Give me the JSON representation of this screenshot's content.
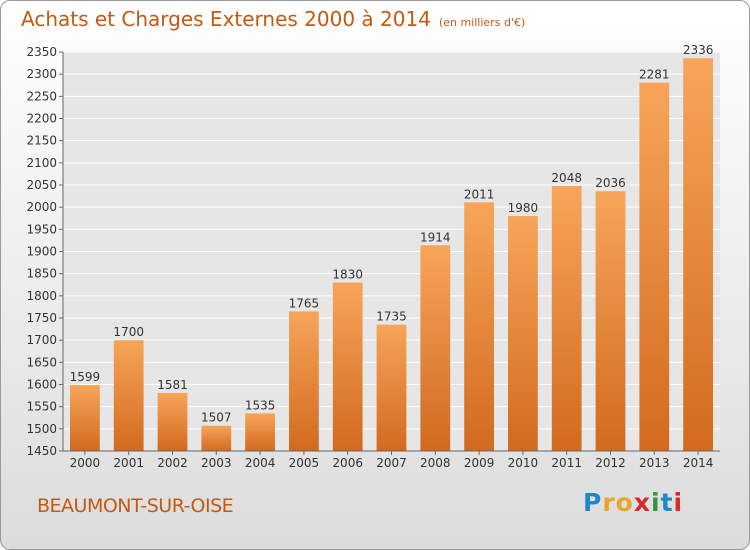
{
  "title": "Achats et Charges Externes 2000 à 2014",
  "subtitle": "(en milliers d'€)",
  "city": "BEAUMONT-SUR-OISE",
  "logo": {
    "text": "Proxiti",
    "colors": [
      "#1e88c8",
      "#e8a52a",
      "#e8a52a",
      "#d42a2a",
      "#2a9a3a",
      "#1e88c8",
      "#d42a2a"
    ]
  },
  "colors": {
    "accent": "#c25a14",
    "bar_light": "#f7a55a",
    "bar_dark": "#d26a1e"
  },
  "chart_data": {
    "type": "bar",
    "title": "Achats et Charges Externes 2000 à 2014",
    "subtitle": "(en milliers d'€)",
    "categories": [
      "2000",
      "2001",
      "2002",
      "2003",
      "2004",
      "2005",
      "2006",
      "2007",
      "2008",
      "2009",
      "2010",
      "2011",
      "2012",
      "2013",
      "2014"
    ],
    "values": [
      1599,
      1700,
      1581,
      1507,
      1535,
      1765,
      1830,
      1735,
      1914,
      2011,
      1980,
      2048,
      2036,
      2281,
      2336
    ],
    "ylim": [
      1450,
      2350
    ],
    "yticks": [
      1450,
      1500,
      1550,
      1600,
      1650,
      1700,
      1750,
      1800,
      1850,
      1900,
      1950,
      2000,
      2050,
      2100,
      2150,
      2200,
      2250,
      2300,
      2350
    ],
    "grid": true,
    "data_labels": true
  }
}
